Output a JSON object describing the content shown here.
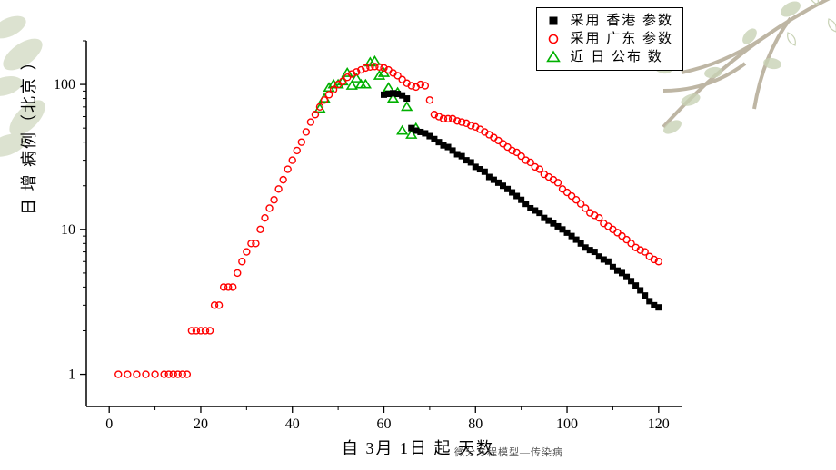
{
  "chart": {
    "type": "scatter",
    "background_color": "#ffffff",
    "axis_color": "#000000",
    "tick_font_size": 16,
    "xlabel": "自 3月 1日 起 天数",
    "ylabel": "日 增 病例（北京 ）",
    "footnote": "微分方程模型—传染病",
    "xlim": [
      -5,
      125
    ],
    "xticks": [
      0,
      20,
      40,
      60,
      80,
      100,
      120
    ],
    "yscale": "log",
    "ylim": [
      0.6,
      200
    ],
    "yticks": [
      1,
      10,
      100
    ],
    "legend": {
      "items": [
        {
          "label": "采用 香港 参数",
          "marker": "filled-square",
          "color": "#000000"
        },
        {
          "label": "采用 广东 参数",
          "marker": "open-circle",
          "color": "#ff0000"
        },
        {
          "label": "近 日 公布 数",
          "marker": "open-triangle",
          "color": "#00b000"
        }
      ]
    },
    "series": [
      {
        "name": "beijing_published",
        "marker": "open-triangle",
        "color": "#00b000",
        "size": 9,
        "stroke_width": 1.6,
        "points": [
          [
            46,
            68
          ],
          [
            47,
            80
          ],
          [
            48,
            95
          ],
          [
            49,
            100
          ],
          [
            50,
            100
          ],
          [
            51,
            105
          ],
          [
            52,
            120
          ],
          [
            53,
            98
          ],
          [
            54,
            110
          ],
          [
            55,
            100
          ],
          [
            56,
            100
          ],
          [
            57,
            142
          ],
          [
            58,
            145
          ],
          [
            59,
            115
          ],
          [
            60,
            120
          ],
          [
            61,
            95
          ],
          [
            62,
            80
          ],
          [
            63,
            88
          ],
          [
            64,
            48
          ],
          [
            65,
            70
          ],
          [
            66,
            45
          ],
          [
            67,
            50
          ]
        ]
      },
      {
        "name": "guangdong_params",
        "marker": "open-circle",
        "color": "#ff0000",
        "size": 7,
        "stroke_width": 1.4,
        "points": [
          [
            2,
            1
          ],
          [
            4,
            1
          ],
          [
            6,
            1
          ],
          [
            8,
            1
          ],
          [
            10,
            1
          ],
          [
            12,
            1
          ],
          [
            13,
            1
          ],
          [
            14,
            1
          ],
          [
            15,
            1
          ],
          [
            16,
            1
          ],
          [
            17,
            1
          ],
          [
            18,
            2
          ],
          [
            19,
            2
          ],
          [
            20,
            2
          ],
          [
            21,
            2
          ],
          [
            22,
            2
          ],
          [
            23,
            3
          ],
          [
            24,
            3
          ],
          [
            25,
            4
          ],
          [
            26,
            4
          ],
          [
            27,
            4
          ],
          [
            28,
            5
          ],
          [
            29,
            6
          ],
          [
            30,
            7
          ],
          [
            31,
            8
          ],
          [
            32,
            8
          ],
          [
            33,
            10
          ],
          [
            34,
            12
          ],
          [
            35,
            14
          ],
          [
            36,
            16
          ],
          [
            37,
            19
          ],
          [
            38,
            22
          ],
          [
            39,
            26
          ],
          [
            40,
            30
          ],
          [
            41,
            35
          ],
          [
            42,
            40
          ],
          [
            43,
            47
          ],
          [
            44,
            55
          ],
          [
            45,
            62
          ],
          [
            46,
            70
          ],
          [
            47,
            78
          ],
          [
            48,
            85
          ],
          [
            49,
            92
          ],
          [
            50,
            100
          ],
          [
            51,
            105
          ],
          [
            52,
            112
          ],
          [
            53,
            118
          ],
          [
            54,
            122
          ],
          [
            55,
            126
          ],
          [
            56,
            130
          ],
          [
            57,
            132
          ],
          [
            58,
            133
          ],
          [
            59,
            132
          ],
          [
            60,
            130
          ],
          [
            61,
            126
          ],
          [
            62,
            120
          ],
          [
            63,
            115
          ],
          [
            64,
            108
          ],
          [
            65,
            102
          ],
          [
            66,
            98
          ],
          [
            67,
            96
          ],
          [
            68,
            100
          ],
          [
            69,
            98
          ],
          [
            70,
            78
          ],
          [
            71,
            62
          ],
          [
            72,
            60
          ],
          [
            73,
            58
          ],
          [
            74,
            58
          ],
          [
            75,
            58
          ],
          [
            76,
            56
          ],
          [
            77,
            55
          ],
          [
            78,
            54
          ],
          [
            79,
            52
          ],
          [
            80,
            51
          ],
          [
            81,
            49
          ],
          [
            82,
            47
          ],
          [
            83,
            45
          ],
          [
            84,
            43
          ],
          [
            85,
            41
          ],
          [
            86,
            39
          ],
          [
            87,
            37
          ],
          [
            88,
            35
          ],
          [
            89,
            34
          ],
          [
            90,
            32
          ],
          [
            91,
            30
          ],
          [
            92,
            29
          ],
          [
            93,
            27
          ],
          [
            94,
            26
          ],
          [
            95,
            24
          ],
          [
            96,
            23
          ],
          [
            97,
            22
          ],
          [
            98,
            21
          ],
          [
            99,
            19
          ],
          [
            100,
            18
          ],
          [
            101,
            17
          ],
          [
            102,
            16
          ],
          [
            103,
            15
          ],
          [
            104,
            14
          ],
          [
            105,
            13
          ],
          [
            106,
            12.5
          ],
          [
            107,
            12
          ],
          [
            108,
            11
          ],
          [
            109,
            10.5
          ],
          [
            110,
            10
          ],
          [
            111,
            9.5
          ],
          [
            112,
            9
          ],
          [
            113,
            8.5
          ],
          [
            114,
            8
          ],
          [
            115,
            7.5
          ],
          [
            116,
            7.2
          ],
          [
            117,
            7
          ],
          [
            118,
            6.5
          ],
          [
            119,
            6.2
          ],
          [
            120,
            6
          ]
        ]
      },
      {
        "name": "hongkong_params",
        "marker": "filled-square",
        "color": "#000000",
        "size": 7,
        "points": [
          [
            60,
            85
          ],
          [
            61,
            86
          ],
          [
            62,
            87
          ],
          [
            63,
            86
          ],
          [
            64,
            84
          ],
          [
            65,
            80
          ],
          [
            66,
            50
          ],
          [
            67,
            48
          ],
          [
            68,
            47
          ],
          [
            69,
            46
          ],
          [
            70,
            44
          ],
          [
            71,
            42
          ],
          [
            72,
            40
          ],
          [
            73,
            38
          ],
          [
            74,
            37
          ],
          [
            75,
            35
          ],
          [
            76,
            33
          ],
          [
            77,
            32
          ],
          [
            78,
            30
          ],
          [
            79,
            29
          ],
          [
            80,
            27
          ],
          [
            81,
            26
          ],
          [
            82,
            25
          ],
          [
            83,
            23
          ],
          [
            84,
            22
          ],
          [
            85,
            21
          ],
          [
            86,
            20
          ],
          [
            87,
            19
          ],
          [
            88,
            18
          ],
          [
            89,
            17
          ],
          [
            90,
            16
          ],
          [
            91,
            15
          ],
          [
            92,
            14
          ],
          [
            93,
            13.5
          ],
          [
            94,
            13
          ],
          [
            95,
            12
          ],
          [
            96,
            11.5
          ],
          [
            97,
            11
          ],
          [
            98,
            10.5
          ],
          [
            99,
            10
          ],
          [
            100,
            9.5
          ],
          [
            101,
            9
          ],
          [
            102,
            8.5
          ],
          [
            103,
            8
          ],
          [
            104,
            7.5
          ],
          [
            105,
            7.2
          ],
          [
            106,
            7
          ],
          [
            107,
            6.5
          ],
          [
            108,
            6.2
          ],
          [
            109,
            6
          ],
          [
            110,
            5.5
          ],
          [
            111,
            5.2
          ],
          [
            112,
            5
          ],
          [
            113,
            4.7
          ],
          [
            114,
            4.4
          ],
          [
            115,
            4.1
          ],
          [
            116,
            3.8
          ],
          [
            117,
            3.5
          ],
          [
            118,
            3.2
          ],
          [
            119,
            3
          ],
          [
            120,
            2.9
          ]
        ]
      }
    ]
  }
}
